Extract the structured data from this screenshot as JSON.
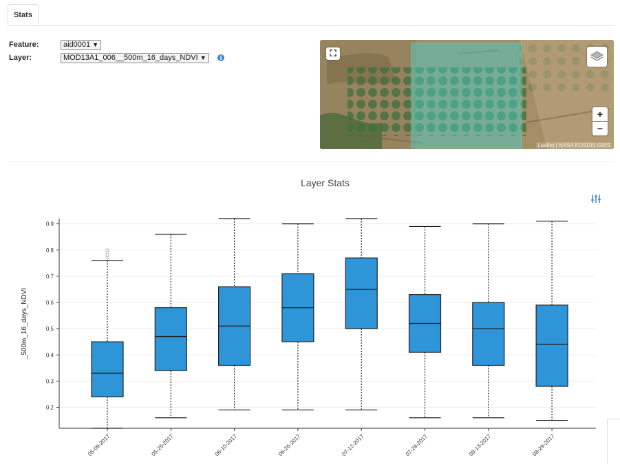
{
  "tabs": [
    {
      "label": "Stats"
    }
  ],
  "form": {
    "feature_label": "Feature:",
    "feature_value": "aid0001",
    "layer_label": "Layer:",
    "layer_value": "MOD13A1_006__500m_16_days_NDVI",
    "info_glyph": "i"
  },
  "map": {
    "attribution": "Leaflet | NASA EOSDIS GIBS",
    "zoom_in": "+",
    "zoom_out": "−",
    "colors": {
      "selection": "#3fd3d3",
      "terrain": "#a08a63",
      "fields": "#3f6b3a"
    }
  },
  "chart_data": {
    "type": "box",
    "title": "Layer Stats",
    "ylabel": "_500m_16_days_NDVI",
    "xlabel": "",
    "ylim": [
      0.12,
      0.92
    ],
    "yticks": [
      0.2,
      0.3,
      0.4,
      0.5,
      0.6,
      0.7,
      0.8,
      0.9
    ],
    "grid": true,
    "box_color": "#2e95d8",
    "categories": [
      "05-09-2017",
      "05-25-2017",
      "06-10-2017",
      "06-26-2017",
      "07-12-2017",
      "07-28-2017",
      "08-13-2017",
      "08-29-2017"
    ],
    "boxes": [
      {
        "min": 0.12,
        "q1": 0.24,
        "median": 0.33,
        "q3": 0.45,
        "max": 0.76,
        "outliers": [
          0.77,
          0.78,
          0.79,
          0.8
        ]
      },
      {
        "min": 0.16,
        "q1": 0.34,
        "median": 0.47,
        "q3": 0.58,
        "max": 0.86,
        "outliers": []
      },
      {
        "min": 0.19,
        "q1": 0.36,
        "median": 0.51,
        "q3": 0.66,
        "max": 0.92,
        "outliers": []
      },
      {
        "min": 0.19,
        "q1": 0.45,
        "median": 0.58,
        "q3": 0.71,
        "max": 0.9,
        "outliers": []
      },
      {
        "min": 0.19,
        "q1": 0.5,
        "median": 0.65,
        "q3": 0.77,
        "max": 0.92,
        "outliers": []
      },
      {
        "min": 0.16,
        "q1": 0.41,
        "median": 0.52,
        "q3": 0.63,
        "max": 0.89,
        "outliers": []
      },
      {
        "min": 0.16,
        "q1": 0.36,
        "median": 0.5,
        "q3": 0.6,
        "max": 0.9,
        "outliers": []
      },
      {
        "min": 0.15,
        "q1": 0.28,
        "median": 0.44,
        "q3": 0.59,
        "max": 0.91,
        "outliers": []
      }
    ]
  }
}
